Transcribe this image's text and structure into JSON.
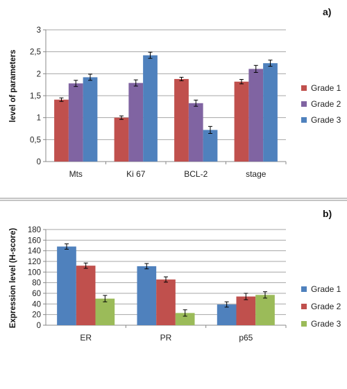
{
  "chart_data": [
    {
      "type": "bar",
      "panel_label": "a)",
      "categories": [
        "Mts",
        "Ki 67",
        "BCL-2",
        "stage"
      ],
      "ylabel": "level of parameters",
      "ylim": [
        0,
        3
      ],
      "yticks": [
        "0",
        "0,5",
        "1",
        "1,5",
        "2",
        "2,5",
        "3"
      ],
      "ytick_values": [
        0,
        0.5,
        1,
        1.5,
        2,
        2.5,
        3
      ],
      "grid": true,
      "legend_position": "right",
      "series": [
        {
          "name": "Grade 1",
          "color": "#c0504d",
          "values": [
            1.41,
            1.0,
            1.88,
            1.82
          ],
          "errors": [
            0.04,
            0.04,
            0.04,
            0.05
          ]
        },
        {
          "name": "Grade 2",
          "color": "#8064a2",
          "values": [
            1.78,
            1.79,
            1.33,
            2.11
          ],
          "errors": [
            0.07,
            0.07,
            0.07,
            0.08
          ]
        },
        {
          "name": "Grade 3",
          "color": "#4f81bd",
          "values": [
            1.92,
            2.42,
            0.72,
            2.24
          ],
          "errors": [
            0.07,
            0.07,
            0.08,
            0.07
          ]
        }
      ]
    },
    {
      "type": "bar",
      "panel_label": "b)",
      "categories": [
        "ER",
        "PR",
        "p65"
      ],
      "ylabel": "Expression level (H-score)",
      "ylim": [
        0,
        180
      ],
      "yticks": [
        "0",
        "20",
        "40",
        "60",
        "80",
        "100",
        "120",
        "140",
        "160",
        "180"
      ],
      "ytick_values": [
        0,
        20,
        40,
        60,
        80,
        100,
        120,
        140,
        160,
        180
      ],
      "grid": true,
      "legend_position": "right",
      "series": [
        {
          "name": "Grade 1",
          "color": "#4f81bd",
          "values": [
            148,
            111,
            39
          ],
          "errors": [
            5,
            5,
            5
          ]
        },
        {
          "name": "Grade 2",
          "color": "#c0504d",
          "values": [
            112,
            86,
            54
          ],
          "errors": [
            5,
            5,
            6
          ]
        },
        {
          "name": "Grade 3",
          "color": "#9bbb59",
          "values": [
            50,
            23,
            57
          ],
          "errors": [
            6,
            6,
            6
          ]
        }
      ]
    }
  ]
}
